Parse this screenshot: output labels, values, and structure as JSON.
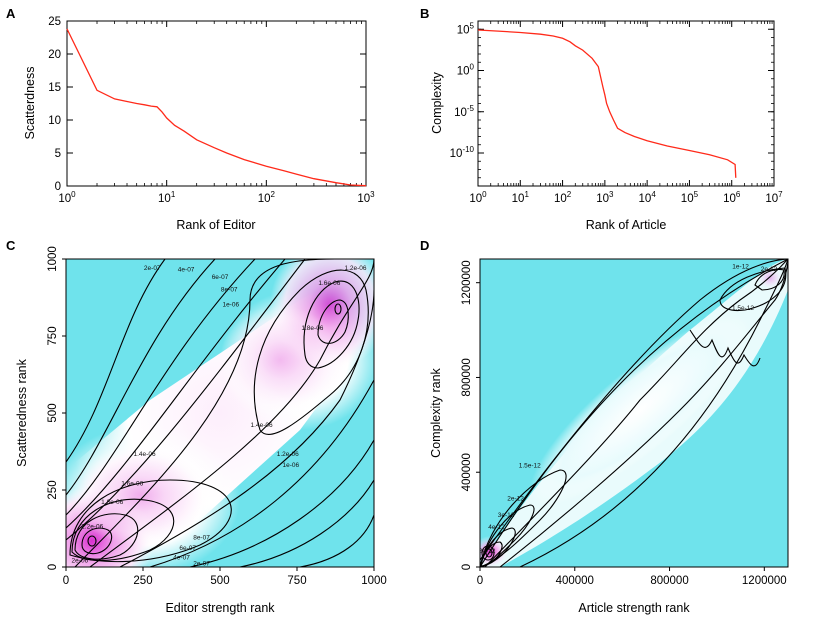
{
  "colors": {
    "line": "#ff2a1a",
    "heat_low": "#6fe3ec",
    "heat_mid": "#ffffff",
    "heat_high": "#d930d0",
    "contour": "#000000"
  },
  "chart_data": [
    {
      "panel": "A",
      "type": "line",
      "title": "",
      "xlabel": "Rank of Editor",
      "ylabel": "Scatterdness",
      "xscale": "log",
      "xlim": [
        1,
        1000
      ],
      "ylim": [
        0,
        25
      ],
      "xticks": [
        1,
        10,
        100,
        1000
      ],
      "xtick_labels": [
        {
          "base": "10",
          "exp": "0"
        },
        {
          "base": "10",
          "exp": "1"
        },
        {
          "base": "10",
          "exp": "2"
        },
        {
          "base": "10",
          "exp": "3"
        }
      ],
      "yticks": [
        0,
        5,
        10,
        15,
        20,
        25
      ],
      "ytick_labels": [
        "0",
        "5",
        "10",
        "15",
        "20",
        "25"
      ],
      "series": [
        {
          "name": "scatterdness",
          "x": [
            1,
            2,
            3,
            4,
            5,
            6,
            7,
            8,
            9,
            10,
            12,
            15,
            20,
            30,
            40,
            60,
            100,
            150,
            200,
            300,
            500,
            700,
            1000
          ],
          "y": [
            23.8,
            14.5,
            13.2,
            12.8,
            12.5,
            12.3,
            12.1,
            12.0,
            11.2,
            10.3,
            9.2,
            8.3,
            7.0,
            5.8,
            5.0,
            4.0,
            3.0,
            2.3,
            1.8,
            1.1,
            0.5,
            0.15,
            0.05
          ]
        }
      ]
    },
    {
      "panel": "B",
      "type": "line",
      "title": "",
      "xlabel": "Rank of Article",
      "ylabel": "Complexity",
      "xscale": "log",
      "yscale": "log",
      "xlim": [
        1,
        10000000
      ],
      "ylim": [
        1e-14,
        1000000.0
      ],
      "xticks": [
        1,
        10,
        100,
        1000,
        10000,
        100000,
        1000000,
        10000000
      ],
      "xtick_labels": [
        {
          "base": "10",
          "exp": "0"
        },
        {
          "base": "10",
          "exp": "1"
        },
        {
          "base": "10",
          "exp": "2"
        },
        {
          "base": "10",
          "exp": "3"
        },
        {
          "base": "10",
          "exp": "4"
        },
        {
          "base": "10",
          "exp": "5"
        },
        {
          "base": "10",
          "exp": "6"
        },
        {
          "base": "10",
          "exp": "7"
        }
      ],
      "yticks": [
        100000.0,
        1,
        1e-05,
        1e-10
      ],
      "ytick_labels": [
        {
          "base": "10",
          "exp": "5"
        },
        {
          "base": "10",
          "exp": "0"
        },
        {
          "base": "10",
          "exp": "-5"
        },
        {
          "base": "10",
          "exp": "-10"
        }
      ],
      "series": [
        {
          "name": "complexity",
          "x": [
            1,
            3,
            10,
            30,
            60,
            100,
            150,
            200,
            300,
            500,
            700,
            900,
            1000,
            1100,
            1300,
            1600,
            2000,
            3000,
            5000,
            10000,
            30000,
            100000,
            300000,
            800000,
            1200000,
            1250000
          ],
          "y": [
            80000.0,
            60000.0,
            40000.0,
            25000.0,
            15000.0,
            8000.0,
            3000.0,
            1000.0,
            300,
            30,
            3,
            0.01,
            0.001,
            0.0001,
            1e-05,
            1e-06,
            1e-07,
            3e-08,
            1e-08,
            3e-09,
            7e-10,
            2e-10,
            6e-11,
            1.5e-11,
            4e-12,
            1e-13
          ]
        }
      ]
    },
    {
      "panel": "C",
      "type": "heatmap",
      "title": "",
      "xlabel": "Editor strength rank",
      "ylabel": "Scatteredness rank",
      "xlim": [
        0,
        1000
      ],
      "ylim": [
        0,
        1000
      ],
      "xticks": [
        0,
        250,
        500,
        750,
        1000
      ],
      "xtick_labels": [
        "0",
        "250",
        "500",
        "750",
        "1000"
      ],
      "yticks": [
        0,
        250,
        500,
        750,
        1000
      ],
      "ytick_labels": [
        "0",
        "250",
        "500",
        "750",
        "1000"
      ],
      "contour_levels": [
        2e-07,
        4e-07,
        6e-07,
        8e-07,
        1e-06,
        1.2e-06,
        1.4e-06,
        1.6e-06,
        1.8e-06,
        2e-06,
        2.2e-06
      ],
      "contour_labels": [
        {
          "text": "2e-07",
          "x": 280,
          "y": 965
        },
        {
          "text": "4e-07",
          "x": 390,
          "y": 960
        },
        {
          "text": "6e-07",
          "x": 500,
          "y": 935
        },
        {
          "text": "8e-07",
          "x": 530,
          "y": 895
        },
        {
          "text": "1e-06",
          "x": 535,
          "y": 845
        },
        {
          "text": "1.2e-06",
          "x": 940,
          "y": 965
        },
        {
          "text": "1.6e-06",
          "x": 855,
          "y": 915
        },
        {
          "text": "1.8e-06",
          "x": 800,
          "y": 770
        },
        {
          "text": "1.4e-06",
          "x": 635,
          "y": 455
        },
        {
          "text": "1.2e-06",
          "x": 720,
          "y": 360
        },
        {
          "text": "1e-06",
          "x": 730,
          "y": 325
        },
        {
          "text": "1.4e-06",
          "x": 255,
          "y": 360
        },
        {
          "text": "1.6e-06",
          "x": 215,
          "y": 265
        },
        {
          "text": "1.8e-06",
          "x": 150,
          "y": 205
        },
        {
          "text": "2.2e-06",
          "x": 85,
          "y": 125
        },
        {
          "text": "2e-06",
          "x": 45,
          "y": 15
        },
        {
          "text": "8e-07",
          "x": 440,
          "y": 90
        },
        {
          "text": "6e-07",
          "x": 395,
          "y": 55
        },
        {
          "text": "4e-07",
          "x": 375,
          "y": 25
        },
        {
          "text": "2e-07",
          "x": 440,
          "y": 5
        }
      ]
    },
    {
      "panel": "D",
      "type": "heatmap",
      "title": "",
      "xlabel": "Article strength rank",
      "ylabel": "Complexity rank",
      "xlim": [
        0,
        1300000
      ],
      "ylim": [
        0,
        1300000
      ],
      "xticks": [
        0,
        400000,
        800000,
        1200000
      ],
      "xtick_labels": [
        "0",
        "400000",
        "800000",
        "1200000"
      ],
      "yticks": [
        0,
        400000,
        800000,
        1200000
      ],
      "ytick_labels": [
        "0",
        "400000",
        "800000",
        "1200000"
      ],
      "contour_labels": [
        {
          "text": "1e-12",
          "x": 1100000,
          "y": 1260000
        },
        {
          "text": "2e-12",
          "x": 1220000,
          "y": 1250000
        },
        {
          "text": "1.5e-12",
          "x": 1110000,
          "y": 1085000
        },
        {
          "text": "1.5e-12",
          "x": 210000,
          "y": 420000
        },
        {
          "text": "2e-12",
          "x": 150000,
          "y": 280000
        },
        {
          "text": "3e-12",
          "x": 110000,
          "y": 210000
        },
        {
          "text": "4e-12",
          "x": 70000,
          "y": 160000
        },
        {
          "text": "8e-12",
          "x": 30000,
          "y": 60000
        }
      ]
    }
  ]
}
